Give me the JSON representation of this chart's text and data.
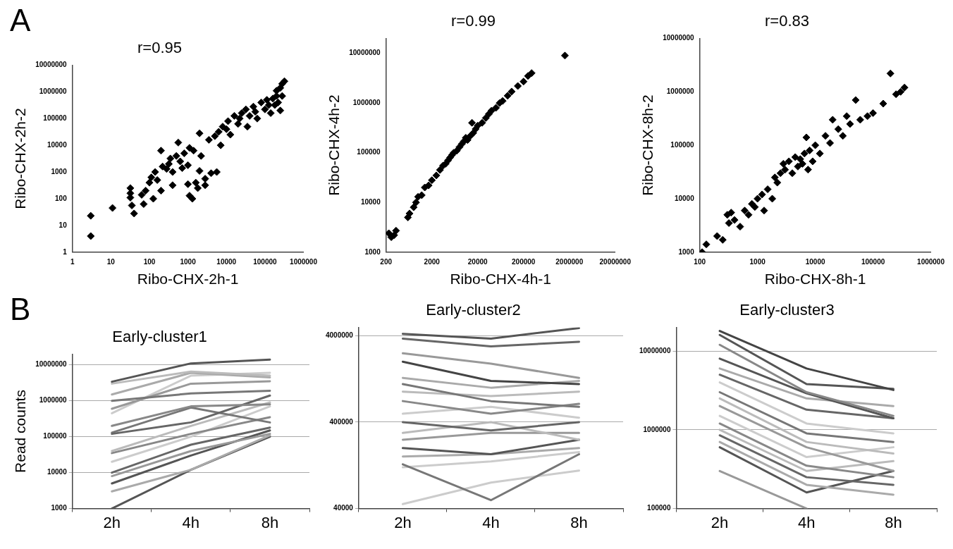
{
  "chart_data": [
    {
      "type": "scatter",
      "title": "r=0.95",
      "annotations": [
        "A"
      ],
      "xlabel": "Ribo-CHX-2h-1",
      "ylabel": "Ribo-CHX-2h-2",
      "log": "xy",
      "grid": false,
      "legend": false,
      "marker": "diamond",
      "color": "#000000",
      "xlim": [
        1,
        1000000
      ],
      "xticks": [
        1,
        10,
        100,
        1000,
        10000,
        100000,
        1000000
      ],
      "ylim": [
        1,
        10000000
      ],
      "yticks": [
        1,
        10,
        100,
        1000,
        10000,
        100000,
        1000000,
        10000000
      ],
      "x": [
        3,
        3,
        11,
        32,
        32,
        32,
        35,
        40,
        63,
        71,
        80,
        100,
        112,
        126,
        141,
        160,
        200,
        200,
        220,
        280,
        320,
        350,
        400,
        400,
        500,
        560,
        630,
        710,
        800,
        1000,
        1000,
        1100,
        1100,
        1300,
        1400,
        1600,
        1800,
        2000,
        2000,
        2200,
        2800,
        2800,
        3500,
        4000,
        5000,
        5600,
        6300,
        7100,
        8000,
        10000,
        11000,
        12600,
        16000,
        20000,
        22000,
        25000,
        32000,
        35000,
        40000,
        50000,
        56000,
        63000,
        80000,
        100000,
        112000,
        126000,
        141000,
        160000,
        180000,
        200000,
        220000,
        250000,
        280000,
        200000,
        320000,
        280000,
        250000
      ],
      "values": [
        23,
        4,
        45,
        250,
        160,
        110,
        56,
        28,
        140,
        63,
        200,
        400,
        630,
        100,
        1000,
        500,
        200,
        6300,
        1600,
        1300,
        2000,
        3200,
        1000,
        320,
        4000,
        12600,
        2500,
        1400,
        5000,
        350,
        1800,
        130,
        8000,
        100,
        6300,
        400,
        250,
        1100,
        28000,
        4000,
        560,
        320,
        16000,
        900,
        22000,
        1000,
        32000,
        10000,
        50000,
        40000,
        80000,
        25000,
        126000,
        63000,
        100000,
        160000,
        220000,
        50000,
        126000,
        280000,
        180000,
        100000,
        400000,
        220000,
        500000,
        320000,
        160000,
        560000,
        320000,
        700000,
        400000,
        200000,
        700000,
        1100000,
        2500000,
        2000000,
        1400000
      ]
    },
    {
      "type": "scatter",
      "title": "r=0.99",
      "xlabel": "Ribo-CHX-4h-1",
      "ylabel": "Ribo-CHX-4h-2",
      "log": "xy",
      "grid": false,
      "legend": false,
      "marker": "diamond",
      "color": "#000000",
      "xlim": [
        200,
        20000000
      ],
      "xticks": [
        200,
        2000,
        20000,
        200000,
        2000000,
        20000000
      ],
      "ylim": [
        1000,
        20000000
      ],
      "yticks": [
        1000,
        10000,
        100000,
        1000000,
        10000000
      ],
      "x": [
        230,
        260,
        300,
        330,
        600,
        650,
        800,
        900,
        1000,
        1200,
        1400,
        1700,
        2000,
        2500,
        3000,
        3500,
        4000,
        4500,
        5000,
        5500,
        6000,
        7000,
        8000,
        9000,
        10000,
        11000,
        12000,
        14000,
        16000,
        15000,
        18000,
        20000,
        25000,
        30000,
        35000,
        40000,
        50000,
        60000,
        70000,
        90000,
        110000,
        150000,
        200000,
        250000,
        300000,
        1600000
      ],
      "values": [
        2400,
        2000,
        2200,
        2700,
        5000,
        6000,
        8000,
        10000,
        13000,
        14000,
        20000,
        22000,
        28000,
        35000,
        45000,
        55000,
        60000,
        70000,
        80000,
        90000,
        100000,
        110000,
        130000,
        150000,
        170000,
        200000,
        180000,
        220000,
        250000,
        400000,
        300000,
        350000,
        400000,
        500000,
        600000,
        700000,
        800000,
        1000000,
        1100000,
        1400000,
        1700000,
        2200000,
        2700000,
        3500000,
        4000000,
        9000000
      ]
    },
    {
      "type": "scatter",
      "title": "r=0.83",
      "xlabel": "Ribo-CHX-8h-1",
      "ylabel": "Ribo-CHX-8h-2",
      "log": "xy",
      "grid": false,
      "legend": false,
      "marker": "diamond",
      "color": "#000000",
      "xlim": [
        100,
        1000000
      ],
      "xticks": [
        100,
        1000,
        10000,
        100000,
        1000000
      ],
      "ylim": [
        1000,
        10000000
      ],
      "yticks": [
        1000,
        10000,
        100000,
        1000000,
        10000000
      ],
      "x": [
        110,
        130,
        200,
        250,
        300,
        320,
        350,
        400,
        500,
        600,
        700,
        800,
        900,
        1000,
        1200,
        1300,
        1500,
        1800,
        2000,
        2200,
        2500,
        2800,
        3000,
        3500,
        4000,
        4500,
        5000,
        5500,
        6000,
        6500,
        7000,
        7500,
        8000,
        9000,
        10000,
        12000,
        15000,
        18000,
        20000,
        25000,
        30000,
        35000,
        40000,
        50000,
        60000,
        80000,
        100000,
        150000,
        200000,
        250000,
        300000,
        350000
      ],
      "values": [
        1000,
        1400,
        2000,
        1700,
        5000,
        3500,
        5500,
        4000,
        3000,
        6000,
        5000,
        8000,
        7000,
        10000,
        12000,
        6000,
        15000,
        10000,
        25000,
        20000,
        30000,
        45000,
        35000,
        50000,
        30000,
        60000,
        40000,
        55000,
        45000,
        70000,
        140000,
        35000,
        80000,
        50000,
        100000,
        70000,
        150000,
        110000,
        300000,
        200000,
        150000,
        350000,
        250000,
        700000,
        300000,
        350000,
        400000,
        600000,
        2200000,
        900000,
        1000000,
        1200000
      ]
    },
    {
      "type": "line",
      "title": "Early-cluster1",
      "annotations": [
        "B"
      ],
      "ylabel": "Read counts",
      "log": "y",
      "grid": "y",
      "legend": false,
      "marker": "none",
      "line_style": "solid",
      "categories": [
        "2h",
        "4h",
        "8h"
      ],
      "ylim": [
        1000,
        20000000
      ],
      "yticks": [
        1000,
        10000,
        100000,
        1000000,
        10000000
      ],
      "series": [
        {
          "color": "#555555",
          "values": [
            3400000,
            11000000,
            14000000
          ]
        },
        {
          "color": "#bbbbbb",
          "values": [
            3000000,
            6500000,
            5000000
          ]
        },
        {
          "color": "#aaaaaa",
          "values": [
            1500000,
            6000000,
            4500000
          ]
        },
        {
          "color": "#777777",
          "values": [
            1000000,
            1600000,
            1900000
          ]
        },
        {
          "color": "#999999",
          "values": [
            600000,
            3000000,
            3500000
          ]
        },
        {
          "color": "#cccccc",
          "values": [
            450000,
            5000000,
            6000000
          ]
        },
        {
          "color": "#888888",
          "values": [
            200000,
            700000,
            800000
          ]
        },
        {
          "color": "#666666",
          "values": [
            120000,
            250000,
            1400000
          ]
        },
        {
          "color": "#777777",
          "values": [
            130000,
            650000,
            250000
          ]
        },
        {
          "color": "#bbbbbb",
          "values": [
            40000,
            200000,
            900000
          ]
        },
        {
          "color": "#888888",
          "values": [
            35000,
            120000,
            350000
          ]
        },
        {
          "color": "#cccccc",
          "values": [
            20000,
            100000,
            700000
          ]
        },
        {
          "color": "#666666",
          "values": [
            10000,
            60000,
            180000
          ]
        },
        {
          "color": "#999999",
          "values": [
            8000,
            40000,
            120000
          ]
        },
        {
          "color": "#555555",
          "values": [
            5000,
            30000,
            150000
          ]
        },
        {
          "color": "#aaaaaa",
          "values": [
            3000,
            12000,
            110000
          ]
        },
        {
          "color": "#555555",
          "values": [
            1000,
            12000,
            100000
          ]
        }
      ]
    },
    {
      "type": "line",
      "title": "Early-cluster2",
      "log": "y",
      "grid": "y",
      "legend": false,
      "marker": "none",
      "line_style": "solid",
      "categories": [
        "2h",
        "4h",
        "8h"
      ],
      "ylim": [
        40000,
        5000000
      ],
      "yticks": [
        40000,
        400000,
        4000000
      ],
      "series": [
        {
          "color": "#555555",
          "values": [
            4200000,
            3700000,
            4900000
          ]
        },
        {
          "color": "#666666",
          "values": [
            3700000,
            3000000,
            3400000
          ]
        },
        {
          "color": "#999999",
          "values": [
            2500000,
            1900000,
            1300000
          ]
        },
        {
          "color": "#444444",
          "values": [
            2000000,
            1200000,
            1100000
          ]
        },
        {
          "color": "#aaaaaa",
          "values": [
            1300000,
            1000000,
            1200000
          ]
        },
        {
          "color": "#777777",
          "values": [
            1100000,
            700000,
            600000
          ]
        },
        {
          "color": "#bbbbbb",
          "values": [
            900000,
            800000,
            900000
          ]
        },
        {
          "color": "#888888",
          "values": [
            700000,
            500000,
            650000
          ]
        },
        {
          "color": "#cccccc",
          "values": [
            500000,
            600000,
            450000
          ]
        },
        {
          "color": "#666666",
          "values": [
            400000,
            320000,
            400000
          ]
        },
        {
          "color": "#bbbbbb",
          "values": [
            300000,
            400000,
            250000
          ]
        },
        {
          "color": "#999999",
          "values": [
            250000,
            300000,
            300000
          ]
        },
        {
          "color": "#555555",
          "values": [
            200000,
            170000,
            250000
          ]
        },
        {
          "color": "#aaaaaa",
          "values": [
            160000,
            170000,
            200000
          ]
        },
        {
          "color": "#777777",
          "values": [
            130000,
            50000,
            170000
          ]
        },
        {
          "color": "#cccccc",
          "values": [
            120000,
            140000,
            180000
          ]
        },
        {
          "color": "#cccccc",
          "values": [
            45000,
            80000,
            110000
          ]
        }
      ]
    },
    {
      "type": "line",
      "title": "Early-cluster3",
      "log": "y",
      "grid": "y",
      "legend": false,
      "marker": "none",
      "line_style": "solid",
      "categories": [
        "2h",
        "4h",
        "8h"
      ],
      "ylim": [
        100000,
        20000000
      ],
      "yticks": [
        100000,
        1000000,
        10000000
      ],
      "series": [
        {
          "color": "#444444",
          "values": [
            18000000,
            6000000,
            3200000
          ]
        },
        {
          "color": "#555555",
          "values": [
            16000000,
            3800000,
            3300000
          ]
        },
        {
          "color": "#888888",
          "values": [
            12000000,
            3000000,
            1500000
          ]
        },
        {
          "color": "#555555",
          "values": [
            8000000,
            2900000,
            1400000
          ]
        },
        {
          "color": "#aaaaaa",
          "values": [
            6000000,
            2500000,
            2000000
          ]
        },
        {
          "color": "#666666",
          "values": [
            5000000,
            1800000,
            1400000
          ]
        },
        {
          "color": "#cccccc",
          "values": [
            4000000,
            1200000,
            900000
          ]
        },
        {
          "color": "#777777",
          "values": [
            3000000,
            900000,
            700000
          ]
        },
        {
          "color": "#bbbbbb",
          "values": [
            2500000,
            700000,
            500000
          ]
        },
        {
          "color": "#999999",
          "values": [
            2000000,
            600000,
            300000
          ]
        },
        {
          "color": "#cccccc",
          "values": [
            1500000,
            450000,
            600000
          ]
        },
        {
          "color": "#888888",
          "values": [
            1200000,
            350000,
            250000
          ]
        },
        {
          "color": "#bbbbbb",
          "values": [
            1000000,
            300000,
            400000
          ]
        },
        {
          "color": "#666666",
          "values": [
            850000,
            250000,
            200000
          ]
        },
        {
          "color": "#aaaaaa",
          "values": [
            700000,
            200000,
            150000
          ]
        },
        {
          "color": "#555555",
          "values": [
            600000,
            160000,
            300000
          ]
        },
        {
          "color": "#999999",
          "values": [
            300000,
            100000,
            null
          ]
        }
      ]
    }
  ]
}
